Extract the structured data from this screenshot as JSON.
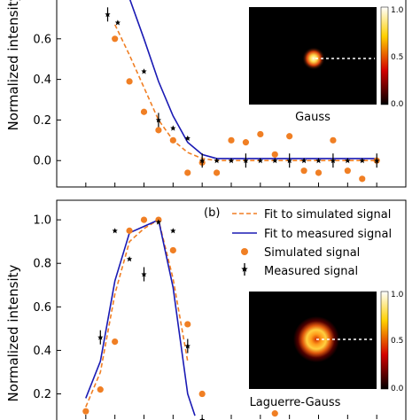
{
  "chart_data": [
    {
      "type": "scatter",
      "panel_label": "",
      "ylabel": "Normalized intensity",
      "xlabel": "",
      "ylim": [
        -0.13,
        0.8
      ],
      "yticks": [
        0.0,
        0.2,
        0.4,
        0.6
      ],
      "xlim": [
        0,
        24
      ],
      "colors": {
        "simulated": "#f07f24",
        "fit_sim": "#f07f24",
        "fit_meas": "#1a1ab4",
        "measured": "#000000"
      },
      "series": [
        {
          "kind": "fit_sim",
          "x": [
            4,
            5,
            6,
            7,
            8,
            9,
            10,
            11,
            22
          ],
          "y": [
            0.67,
            0.52,
            0.36,
            0.2,
            0.1,
            0.04,
            0.01,
            0.0,
            0.0
          ]
        },
        {
          "kind": "fit_meas",
          "x": [
            5,
            6,
            7,
            8,
            9,
            10,
            11,
            22
          ],
          "y": [
            0.8,
            0.6,
            0.39,
            0.22,
            0.09,
            0.03,
            0.01,
            0.01
          ]
        },
        {
          "kind": "simulated",
          "x": [
            4,
            5,
            6,
            7,
            8,
            9,
            10,
            11,
            12,
            13,
            14,
            15,
            16,
            17,
            18,
            19,
            20,
            21,
            22
          ],
          "y": [
            0.6,
            0.39,
            0.24,
            0.15,
            0.1,
            -0.06,
            -0.01,
            -0.06,
            0.1,
            0.09,
            0.13,
            0.03,
            0.12,
            -0.05,
            -0.06,
            0.1,
            -0.05,
            -0.09,
            0.0
          ]
        },
        {
          "kind": "measured",
          "x": [
            3.5,
            4.2,
            6,
            7,
            8,
            9,
            10,
            11,
            12,
            13,
            14,
            15,
            16,
            17,
            18,
            19,
            20,
            21,
            22
          ],
          "y": [
            0.72,
            0.68,
            0.44,
            0.2,
            0.16,
            0.11,
            0.0,
            0.0,
            0.0,
            0.0,
            0.0,
            0.0,
            0.0,
            0.0,
            0.0,
            0.0,
            0.0,
            0.0,
            0.0
          ]
        }
      ],
      "inset": {
        "label": "Gauss",
        "colorbar_ticks": [
          "1.0",
          "0.5",
          "0.0"
        ]
      }
    },
    {
      "type": "scatter",
      "panel_label": "(b)",
      "ylabel": "Normalized intensity",
      "xlabel": "",
      "ylim": [
        0.08,
        1.09
      ],
      "yticks": [
        0.2,
        0.4,
        0.6,
        0.8,
        1.0
      ],
      "xlim": [
        0,
        24
      ],
      "legend": {
        "placement": "top-right",
        "entries": [
          {
            "kind": "fit_sim",
            "label": "Fit to simulated signal"
          },
          {
            "kind": "fit_meas",
            "label": "Fit to measured signal"
          },
          {
            "kind": "simulated",
            "label": "Simulated signal"
          },
          {
            "kind": "measured",
            "label": "Measured signal"
          }
        ]
      },
      "series": [
        {
          "kind": "fit_sim",
          "x": [
            2,
            3,
            4,
            5,
            6,
            7,
            8,
            9
          ],
          "y": [
            0.14,
            0.3,
            0.66,
            0.9,
            0.96,
            1.0,
            0.73,
            0.35
          ]
        },
        {
          "kind": "fit_meas",
          "x": [
            2,
            3,
            4,
            5,
            6,
            7,
            8,
            9,
            9.5
          ],
          "y": [
            0.18,
            0.35,
            0.72,
            0.94,
            0.97,
            1.0,
            0.69,
            0.2,
            0.1
          ]
        },
        {
          "kind": "simulated",
          "x": [
            2,
            3,
            4,
            5,
            6,
            7,
            8,
            9,
            10,
            15
          ],
          "y": [
            0.12,
            0.22,
            0.44,
            0.95,
            1.0,
            1.0,
            0.86,
            0.52,
            0.2,
            0.11
          ]
        },
        {
          "kind": "measured",
          "x": [
            3,
            4,
            5,
            6,
            7,
            8,
            9,
            10
          ],
          "y": [
            0.46,
            0.95,
            0.82,
            0.75,
            0.99,
            0.95,
            0.42,
            0.08
          ]
        }
      ],
      "inset": {
        "label": "Laguerre-Gauss",
        "colorbar_ticks": [
          "1.0",
          "0.5",
          "0.0"
        ]
      }
    }
  ]
}
